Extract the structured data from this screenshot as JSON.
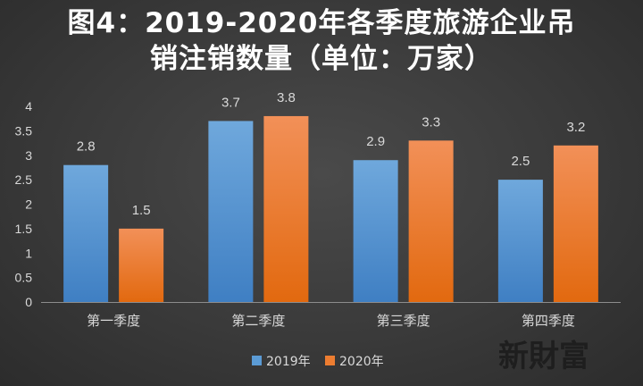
{
  "title_line1": "图4：2019-2020年各季度旅游企业吊",
  "title_line2": "销注销数量（单位：万家）",
  "watermark": "新財富",
  "colors": {
    "background": "#3a3a3a",
    "series_2019": "#5b9bd5",
    "series_2020": "#ed7d31",
    "text": "#d9d9d9"
  },
  "chart_data": {
    "type": "bar",
    "categories": [
      "第一季度",
      "第二季度",
      "第三季度",
      "第四季度"
    ],
    "series": [
      {
        "name": "2019年",
        "values": [
          2.8,
          3.7,
          2.9,
          2.5
        ],
        "labels": [
          "2.8",
          "3.7",
          "2.9",
          "2.5"
        ]
      },
      {
        "name": "2020年",
        "values": [
          1.5,
          3.8,
          3.3,
          3.2
        ],
        "labels": [
          "1.5",
          "3.8",
          "3.3",
          "3.2"
        ]
      }
    ],
    "ylim": [
      0,
      4
    ],
    "yticks": [
      "0",
      "0.5",
      "1",
      "1.5",
      "2",
      "2.5",
      "3",
      "3.5",
      "4"
    ],
    "grid": false,
    "legend": "bottom"
  }
}
